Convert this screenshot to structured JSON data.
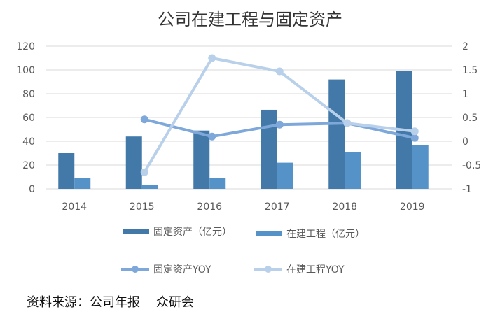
{
  "chart_data": {
    "type": "bar+line",
    "title": "公司在建工程与固定资产",
    "categories": [
      "2014",
      "2015",
      "2016",
      "2017",
      "2018",
      "2019"
    ],
    "y_left": {
      "range": [
        0,
        120
      ],
      "ticks": [
        0,
        20,
        40,
        60,
        80,
        100,
        120
      ]
    },
    "y_right": {
      "range": [
        -1,
        2
      ],
      "ticks": [
        "-1",
        "-0.5",
        "0",
        "0.5",
        "1",
        "1.5",
        "2"
      ]
    },
    "grid": true,
    "legend_position": "bottom",
    "series": [
      {
        "name": "固定资产（亿元）",
        "type": "bar",
        "axis": "left",
        "color": "#4279A9",
        "values": [
          30,
          44,
          49,
          66.5,
          92,
          99
        ]
      },
      {
        "name": "在建工程（亿元）",
        "type": "bar",
        "axis": "left",
        "color": "#5592C8",
        "values": [
          9.4,
          3,
          9,
          22,
          30.6,
          36.5
        ]
      },
      {
        "name": "固定资产YOY",
        "type": "line",
        "axis": "right",
        "color": "#7EA8DA",
        "values": [
          null,
          0.46,
          0.1,
          0.35,
          0.38,
          0.07
        ]
      },
      {
        "name": "在建工程YOY",
        "type": "line",
        "axis": "right",
        "color": "#B9D0EA",
        "values": [
          null,
          -0.65,
          1.75,
          1.47,
          0.38,
          0.21
        ]
      }
    ]
  },
  "source": "资料来源：公司年报    众研会"
}
